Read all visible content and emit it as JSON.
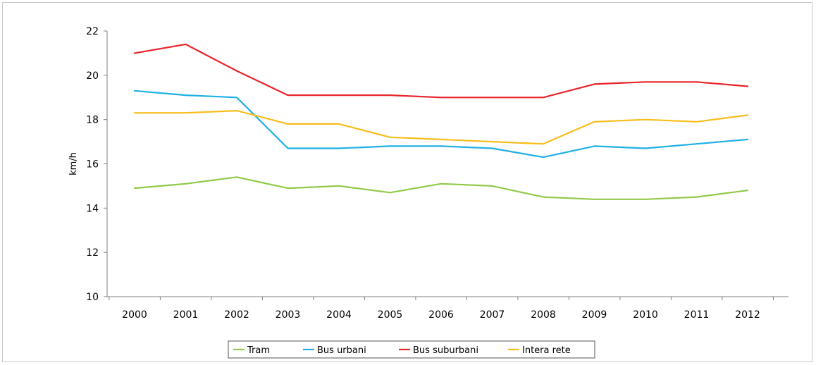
{
  "chart_data": {
    "type": "line",
    "title": "",
    "xlabel": "",
    "ylabel": "km/h",
    "ylim": [
      10,
      22
    ],
    "yticks": [
      "10",
      "12",
      "14",
      "16",
      "18",
      "20",
      "22"
    ],
    "categories": [
      "2000",
      "2001",
      "2002",
      "2003",
      "2004",
      "2005",
      "2006",
      "2007",
      "2008",
      "2009",
      "2010",
      "2011",
      "2012"
    ],
    "grid": false,
    "legend_position": "bottom",
    "series": [
      {
        "name": "Tram",
        "color": "#92c94a",
        "values": [
          14.9,
          15.1,
          15.4,
          14.9,
          15.0,
          14.7,
          15.1,
          15.0,
          14.5,
          14.4,
          14.4,
          14.5,
          14.8
        ]
      },
      {
        "name": "Bus urbani",
        "color": "#1fb0e6",
        "values": [
          19.3,
          19.1,
          19.0,
          16.7,
          16.7,
          16.8,
          16.8,
          16.7,
          16.3,
          16.8,
          16.7,
          16.9,
          17.1
        ]
      },
      {
        "name": "Bus suburbani",
        "color": "#e8252b",
        "values": [
          21.0,
          21.4,
          20.2,
          19.1,
          19.1,
          19.1,
          19.0,
          19.0,
          19.0,
          19.6,
          19.7,
          19.7,
          19.5
        ]
      },
      {
        "name": "Intera rete",
        "color": "#f7bd1d",
        "values": [
          18.3,
          18.3,
          18.4,
          17.8,
          17.8,
          17.2,
          17.1,
          17.0,
          16.9,
          17.9,
          18.0,
          17.9,
          18.2
        ]
      }
    ]
  }
}
